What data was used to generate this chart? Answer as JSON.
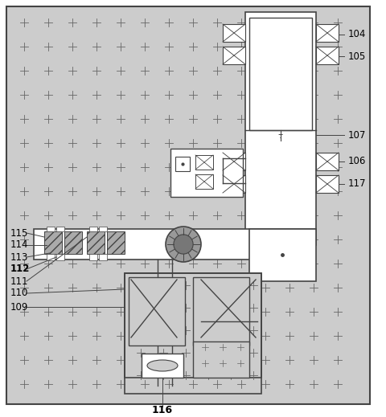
{
  "bg_color": "#cccccc",
  "line_color": "#444444",
  "box_fill": "#ffffff",
  "fig_width": 4.8,
  "fig_height": 5.19,
  "dpi": 100,
  "plus_color": "#666666"
}
